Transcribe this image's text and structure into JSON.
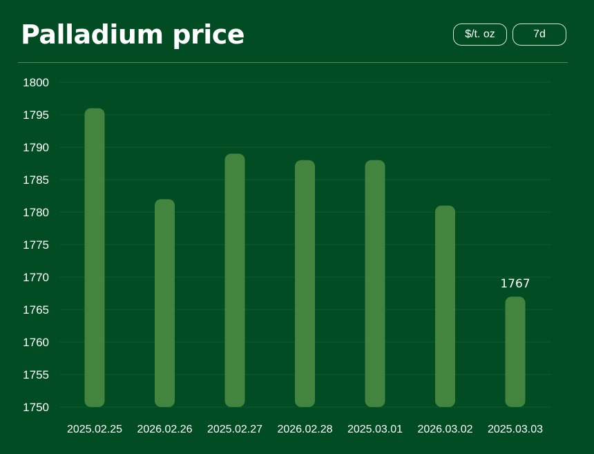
{
  "header": {
    "title": "Palladium price",
    "unit_label": "$/t. oz",
    "range_label": "7d"
  },
  "colors": {
    "background": "#024c23",
    "bar": "#43843e",
    "grid": "#0f5a2c"
  },
  "chart_data": {
    "type": "bar",
    "title": "Palladium price",
    "categories": [
      "2025.02.25",
      "2026.02.26",
      "2025.02.27",
      "2026.02.28",
      "2025.03.01",
      "2026.03.02",
      "2025.03.03"
    ],
    "values": [
      1796,
      1782,
      1789,
      1788,
      1788,
      1781,
      1767
    ],
    "ylim": [
      1750,
      1800
    ],
    "yticks": [
      1750,
      1755,
      1760,
      1765,
      1770,
      1775,
      1780,
      1785,
      1790,
      1795,
      1800
    ],
    "grid": true,
    "annotations": [
      {
        "category": "2025.03.03",
        "text": "1767"
      }
    ]
  }
}
